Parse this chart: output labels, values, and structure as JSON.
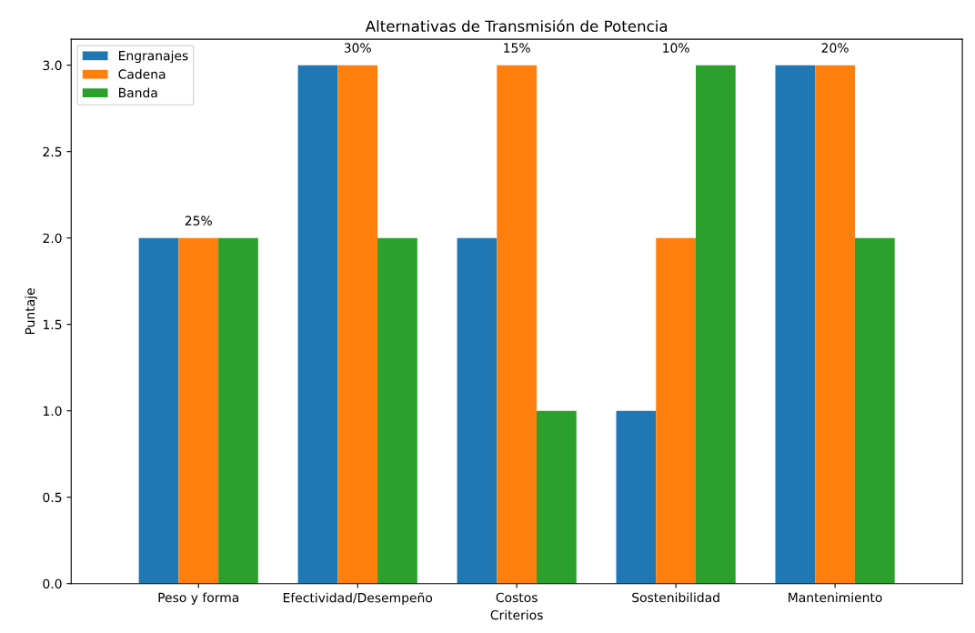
{
  "chart_data": {
    "type": "bar",
    "title": "Alternativas de Transmisión de Potencia",
    "xlabel": "Criterios",
    "ylabel": "Puntaje",
    "categories": [
      "Peso y forma",
      "Efectividad/Desempeño",
      "Costos",
      "Sostenibilidad",
      "Mantenimiento"
    ],
    "series": [
      {
        "name": "Engranajes",
        "color": "#1f77b4",
        "values": [
          2,
          3,
          2,
          1,
          3
        ]
      },
      {
        "name": "Cadena",
        "color": "#ff7f0e",
        "values": [
          2,
          3,
          3,
          2,
          3
        ]
      },
      {
        "name": "Banda",
        "color": "#2ca02c",
        "values": [
          2,
          2,
          1,
          3,
          2
        ]
      }
    ],
    "ylim": [
      0,
      3.15
    ],
    "yticks": [
      {
        "value": 0,
        "label": "0.0"
      },
      {
        "value": 0.5,
        "label": "0.5"
      },
      {
        "value": 1,
        "label": "1.0"
      },
      {
        "value": 1.5,
        "label": "1.5"
      },
      {
        "value": 2,
        "label": "2.0"
      },
      {
        "value": 2.5,
        "label": "2.5"
      },
      {
        "value": 3,
        "label": "3.0"
      }
    ],
    "annotations": [
      "25%",
      "30%",
      "15%",
      "10%",
      "20%"
    ],
    "legend": "top left",
    "grid": false
  }
}
